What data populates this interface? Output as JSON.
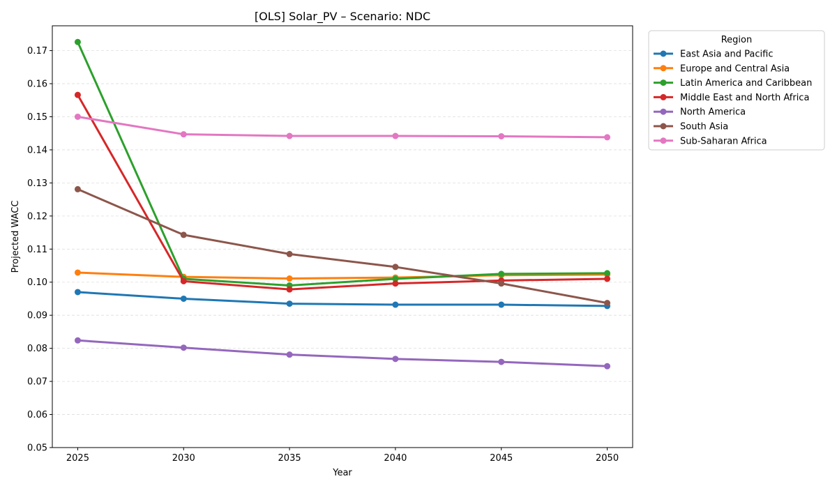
{
  "chart_data": {
    "type": "line",
    "title": "[OLS] Solar_PV – Scenario: NDC",
    "xlabel": "Year",
    "ylabel": "Projected WACC",
    "x": [
      2025,
      2030,
      2035,
      2040,
      2045,
      2050
    ],
    "ylim": [
      0.05,
      0.1775
    ],
    "yticks": [
      "0.05",
      "0.06",
      "0.07",
      "0.08",
      "0.09",
      "0.10",
      "0.11",
      "0.12",
      "0.13",
      "0.14",
      "0.15",
      "0.16",
      "0.17"
    ],
    "ytick_values": [
      0.05,
      0.06,
      0.07,
      0.08,
      0.09,
      0.1,
      0.11,
      0.12,
      0.13,
      0.14,
      0.15,
      0.16,
      0.17
    ],
    "grid": "horizontal dashed",
    "legend": {
      "title": "Region",
      "position": "outside-right"
    },
    "series": [
      {
        "name": "East Asia and Pacific",
        "color": "#1f77b4",
        "values": [
          0.097,
          0.095,
          0.0935,
          0.0932,
          0.0932,
          0.0928
        ]
      },
      {
        "name": "Europe and Central Asia",
        "color": "#ff7f0e",
        "values": [
          0.1029,
          0.1016,
          0.1011,
          0.1014,
          0.1021,
          0.1023
        ]
      },
      {
        "name": "Latin America and Caribbean",
        "color": "#2ca02c",
        "values": [
          0.1726,
          0.101,
          0.099,
          0.101,
          0.1025,
          0.1027
        ]
      },
      {
        "name": "Middle East and North Africa",
        "color": "#d62728",
        "values": [
          0.1566,
          0.1003,
          0.0978,
          0.0996,
          0.1005,
          0.101
        ]
      },
      {
        "name": "North America",
        "color": "#9467bd",
        "values": [
          0.0824,
          0.0802,
          0.0781,
          0.0768,
          0.0759,
          0.0746
        ]
      },
      {
        "name": "South Asia",
        "color": "#8c564b",
        "values": [
          0.1281,
          0.1143,
          0.1085,
          0.1046,
          0.0996,
          0.0937
        ]
      },
      {
        "name": "Sub-Saharan Africa",
        "color": "#e377c2",
        "values": [
          0.15,
          0.1447,
          0.1442,
          0.1442,
          0.1441,
          0.1438
        ]
      }
    ]
  }
}
